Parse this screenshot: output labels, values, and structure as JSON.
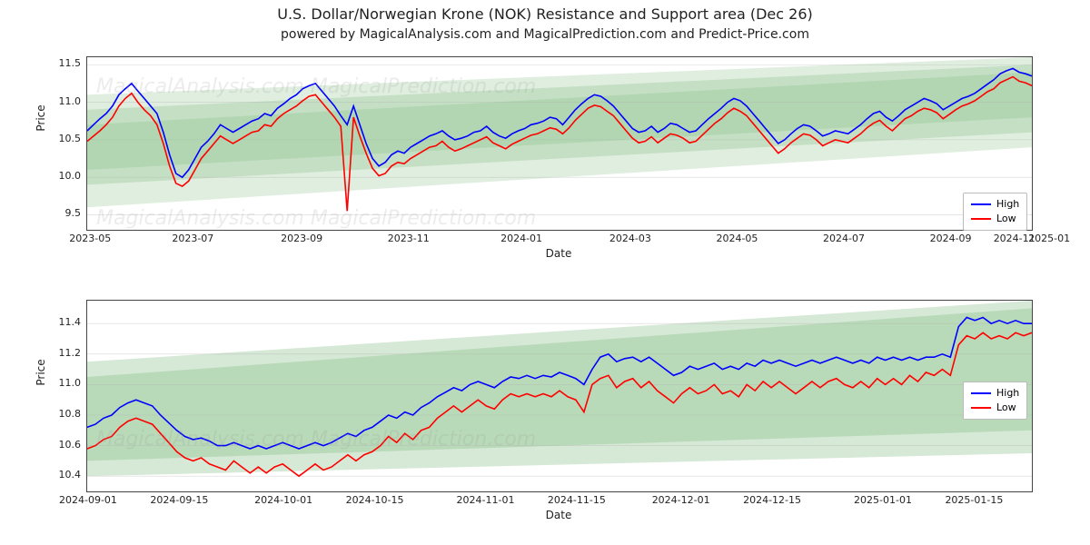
{
  "title": "U.S. Dollar/Norwegian Krone (NOK) Resistance and Support area (Dec 26)",
  "subtitle": "powered by MagicalAnalysis.com and MagicalPrediction.com and Predict-Price.com",
  "watermark_text": "MagicalAnalysis.com   MagicalPrediction.com",
  "colors": {
    "high": "#0000ff",
    "low": "#ff0000",
    "band_light": "#c6e0c6",
    "band_mid": "#b3d6b3",
    "band_dark": "#a3cda3",
    "grid": "#b0b0b0",
    "axis": "#444444",
    "bg": "#ffffff"
  },
  "legend": {
    "items": [
      {
        "label": "High",
        "color_key": "high"
      },
      {
        "label": "Low",
        "color_key": "low"
      }
    ]
  },
  "top_chart": {
    "type": "line",
    "xlabel": "Date",
    "ylabel": "Price",
    "x_range": [
      0,
      460
    ],
    "x_ticks": [
      {
        "pos": 5,
        "label": "2023-05"
      },
      {
        "pos": 55,
        "label": "2023-07"
      },
      {
        "pos": 108,
        "label": "2023-09"
      },
      {
        "pos": 160,
        "label": "2023-11"
      },
      {
        "pos": 215,
        "label": "2024-01"
      },
      {
        "pos": 268,
        "label": "2024-03"
      },
      {
        "pos": 320,
        "label": "2024-05"
      },
      {
        "pos": 372,
        "label": "2024-07"
      },
      {
        "pos": 424,
        "label": "2024-09"
      },
      {
        "pos": 455,
        "label": "2024-11"
      },
      {
        "pos": 472,
        "label": "2025-01"
      }
    ],
    "y_range": [
      9.3,
      11.6
    ],
    "y_ticks": [
      {
        "val": 9.5,
        "label": "9.5"
      },
      {
        "val": 10.0,
        "label": "10.0"
      },
      {
        "val": 10.5,
        "label": "10.5"
      },
      {
        "val": 11.0,
        "label": "11.0"
      },
      {
        "val": 11.5,
        "label": "11.5"
      }
    ],
    "band_layers": [
      {
        "y0_start": 9.6,
        "y1_start": 11.1,
        "y0_end": 10.4,
        "y1_end": 11.6,
        "opacity": 0.35
      },
      {
        "y0_start": 9.9,
        "y1_start": 10.9,
        "y0_end": 10.6,
        "y1_end": 11.5,
        "opacity": 0.45
      },
      {
        "y0_start": 10.1,
        "y1_start": 10.7,
        "y0_end": 10.8,
        "y1_end": 11.4,
        "opacity": 0.55
      }
    ],
    "series": {
      "high": [
        10.62,
        10.7,
        10.78,
        10.85,
        10.95,
        11.1,
        11.18,
        11.25,
        11.15,
        11.05,
        10.95,
        10.85,
        10.6,
        10.3,
        10.05,
        10.0,
        10.1,
        10.25,
        10.4,
        10.48,
        10.58,
        10.7,
        10.65,
        10.6,
        10.65,
        10.7,
        10.75,
        10.78,
        10.85,
        10.82,
        10.92,
        10.98,
        11.05,
        11.1,
        11.18,
        11.22,
        11.25,
        11.15,
        11.05,
        10.95,
        10.82,
        10.7,
        10.95,
        10.7,
        10.45,
        10.25,
        10.15,
        10.2,
        10.3,
        10.35,
        10.32,
        10.4,
        10.45,
        10.5,
        10.55,
        10.58,
        10.62,
        10.55,
        10.5,
        10.52,
        10.55,
        10.6,
        10.62,
        10.68,
        10.6,
        10.55,
        10.52,
        10.58,
        10.62,
        10.65,
        10.7,
        10.72,
        10.75,
        10.8,
        10.78,
        10.7,
        10.8,
        10.9,
        10.98,
        11.05,
        11.1,
        11.08,
        11.02,
        10.95,
        10.85,
        10.75,
        10.65,
        10.6,
        10.62,
        10.68,
        10.6,
        10.65,
        10.72,
        10.7,
        10.65,
        10.6,
        10.62,
        10.7,
        10.78,
        10.85,
        10.92,
        11.0,
        11.05,
        11.02,
        10.95,
        10.85,
        10.75,
        10.65,
        10.55,
        10.45,
        10.5,
        10.58,
        10.65,
        10.7,
        10.68,
        10.62,
        10.55,
        10.58,
        10.62,
        10.6,
        10.58,
        10.64,
        10.7,
        10.78,
        10.85,
        10.88,
        10.8,
        10.75,
        10.82,
        10.9,
        10.95,
        11.0,
        11.05,
        11.02,
        10.98,
        10.9,
        10.95,
        11.0,
        11.05,
        11.08,
        11.12,
        11.18,
        11.24,
        11.3,
        11.38,
        11.42,
        11.45,
        11.4,
        11.38,
        11.35
      ],
      "low": [
        10.48,
        10.55,
        10.62,
        10.7,
        10.8,
        10.95,
        11.05,
        11.12,
        11.0,
        10.9,
        10.82,
        10.7,
        10.45,
        10.15,
        9.92,
        9.88,
        9.95,
        10.1,
        10.25,
        10.35,
        10.45,
        10.55,
        10.5,
        10.45,
        10.5,
        10.55,
        10.6,
        10.62,
        10.7,
        10.68,
        10.78,
        10.85,
        10.9,
        10.95,
        11.02,
        11.08,
        11.1,
        11.0,
        10.9,
        10.8,
        10.68,
        9.55,
        10.8,
        10.55,
        10.32,
        10.12,
        10.02,
        10.05,
        10.15,
        10.2,
        10.18,
        10.25,
        10.3,
        10.35,
        10.4,
        10.42,
        10.48,
        10.4,
        10.35,
        10.38,
        10.42,
        10.46,
        10.5,
        10.54,
        10.46,
        10.42,
        10.38,
        10.44,
        10.48,
        10.52,
        10.56,
        10.58,
        10.62,
        10.66,
        10.64,
        10.58,
        10.66,
        10.76,
        10.84,
        10.92,
        10.96,
        10.94,
        10.88,
        10.82,
        10.72,
        10.62,
        10.52,
        10.46,
        10.48,
        10.54,
        10.46,
        10.52,
        10.58,
        10.56,
        10.52,
        10.46,
        10.48,
        10.56,
        10.64,
        10.72,
        10.78,
        10.86,
        10.92,
        10.88,
        10.82,
        10.72,
        10.62,
        10.52,
        10.42,
        10.32,
        10.38,
        10.46,
        10.52,
        10.58,
        10.56,
        10.5,
        10.42,
        10.46,
        10.5,
        10.48,
        10.46,
        10.52,
        10.58,
        10.66,
        10.72,
        10.76,
        10.68,
        10.62,
        10.7,
        10.78,
        10.82,
        10.88,
        10.92,
        10.9,
        10.86,
        10.78,
        10.84,
        10.9,
        10.95,
        10.98,
        11.02,
        11.08,
        11.14,
        11.18,
        11.26,
        11.3,
        11.34,
        11.28,
        11.26,
        11.22
      ]
    }
  },
  "bottom_chart": {
    "type": "line",
    "xlabel": "Date",
    "ylabel": "Price",
    "x_range": [
      0,
      145
    ],
    "x_ticks": [
      {
        "pos": 0,
        "label": "2024-09-01"
      },
      {
        "pos": 14,
        "label": "2024-09-15"
      },
      {
        "pos": 30,
        "label": "2024-10-01"
      },
      {
        "pos": 44,
        "label": "2024-10-15"
      },
      {
        "pos": 61,
        "label": "2024-11-01"
      },
      {
        "pos": 75,
        "label": "2024-11-15"
      },
      {
        "pos": 91,
        "label": "2024-12-01"
      },
      {
        "pos": 105,
        "label": "2024-12-15"
      },
      {
        "pos": 122,
        "label": "2025-01-01"
      },
      {
        "pos": 136,
        "label": "2025-01-15"
      }
    ],
    "y_range": [
      10.3,
      11.55
    ],
    "y_ticks": [
      {
        "val": 10.4,
        "label": "10.4"
      },
      {
        "val": 10.6,
        "label": "10.6"
      },
      {
        "val": 10.8,
        "label": "10.8"
      },
      {
        "val": 11.0,
        "label": "11.0"
      },
      {
        "val": 11.2,
        "label": "11.2"
      },
      {
        "val": 11.4,
        "label": "11.4"
      }
    ],
    "band_layers": [
      {
        "y0_start": 10.4,
        "y1_start": 11.15,
        "y0_end": 10.55,
        "y1_end": 11.55,
        "opacity": 0.45
      },
      {
        "y0_start": 10.5,
        "y1_start": 11.05,
        "y0_end": 10.7,
        "y1_end": 11.5,
        "opacity": 0.55
      }
    ],
    "data_x_max": 117,
    "series": {
      "high": [
        10.72,
        10.74,
        10.78,
        10.8,
        10.85,
        10.88,
        10.9,
        10.88,
        10.86,
        10.8,
        10.75,
        10.7,
        10.66,
        10.64,
        10.65,
        10.63,
        10.6,
        10.6,
        10.62,
        10.6,
        10.58,
        10.6,
        10.58,
        10.6,
        10.62,
        10.6,
        10.58,
        10.6,
        10.62,
        10.6,
        10.62,
        10.65,
        10.68,
        10.66,
        10.7,
        10.72,
        10.76,
        10.8,
        10.78,
        10.82,
        10.8,
        10.85,
        10.88,
        10.92,
        10.95,
        10.98,
        10.96,
        11.0,
        11.02,
        11.0,
        10.98,
        11.02,
        11.05,
        11.04,
        11.06,
        11.04,
        11.06,
        11.05,
        11.08,
        11.06,
        11.04,
        11.0,
        11.1,
        11.18,
        11.2,
        11.15,
        11.17,
        11.18,
        11.15,
        11.18,
        11.14,
        11.1,
        11.06,
        11.08,
        11.12,
        11.1,
        11.12,
        11.14,
        11.1,
        11.12,
        11.1,
        11.14,
        11.12,
        11.16,
        11.14,
        11.16,
        11.14,
        11.12,
        11.14,
        11.16,
        11.14,
        11.16,
        11.18,
        11.16,
        11.14,
        11.16,
        11.14,
        11.18,
        11.16,
        11.18,
        11.16,
        11.18,
        11.16,
        11.18,
        11.18,
        11.2,
        11.18,
        11.38,
        11.44,
        11.42,
        11.44,
        11.4,
        11.42,
        11.4,
        11.42,
        11.4,
        11.4
      ],
      "low": [
        10.58,
        10.6,
        10.64,
        10.66,
        10.72,
        10.76,
        10.78,
        10.76,
        10.74,
        10.68,
        10.62,
        10.56,
        10.52,
        10.5,
        10.52,
        10.48,
        10.46,
        10.44,
        10.5,
        10.46,
        10.42,
        10.46,
        10.42,
        10.46,
        10.48,
        10.44,
        10.4,
        10.44,
        10.48,
        10.44,
        10.46,
        10.5,
        10.54,
        10.5,
        10.54,
        10.56,
        10.6,
        10.66,
        10.62,
        10.68,
        10.64,
        10.7,
        10.72,
        10.78,
        10.82,
        10.86,
        10.82,
        10.86,
        10.9,
        10.86,
        10.84,
        10.9,
        10.94,
        10.92,
        10.94,
        10.92,
        10.94,
        10.92,
        10.96,
        10.92,
        10.9,
        10.82,
        11.0,
        11.04,
        11.06,
        10.98,
        11.02,
        11.04,
        10.98,
        11.02,
        10.96,
        10.92,
        10.88,
        10.94,
        10.98,
        10.94,
        10.96,
        11.0,
        10.94,
        10.96,
        10.92,
        11.0,
        10.96,
        11.02,
        10.98,
        11.02,
        10.98,
        10.94,
        10.98,
        11.02,
        10.98,
        11.02,
        11.04,
        11.0,
        10.98,
        11.02,
        10.98,
        11.04,
        11.0,
        11.04,
        11.0,
        11.06,
        11.02,
        11.08,
        11.06,
        11.1,
        11.06,
        11.26,
        11.32,
        11.3,
        11.34,
        11.3,
        11.32,
        11.3,
        11.34,
        11.32,
        11.34
      ]
    }
  }
}
